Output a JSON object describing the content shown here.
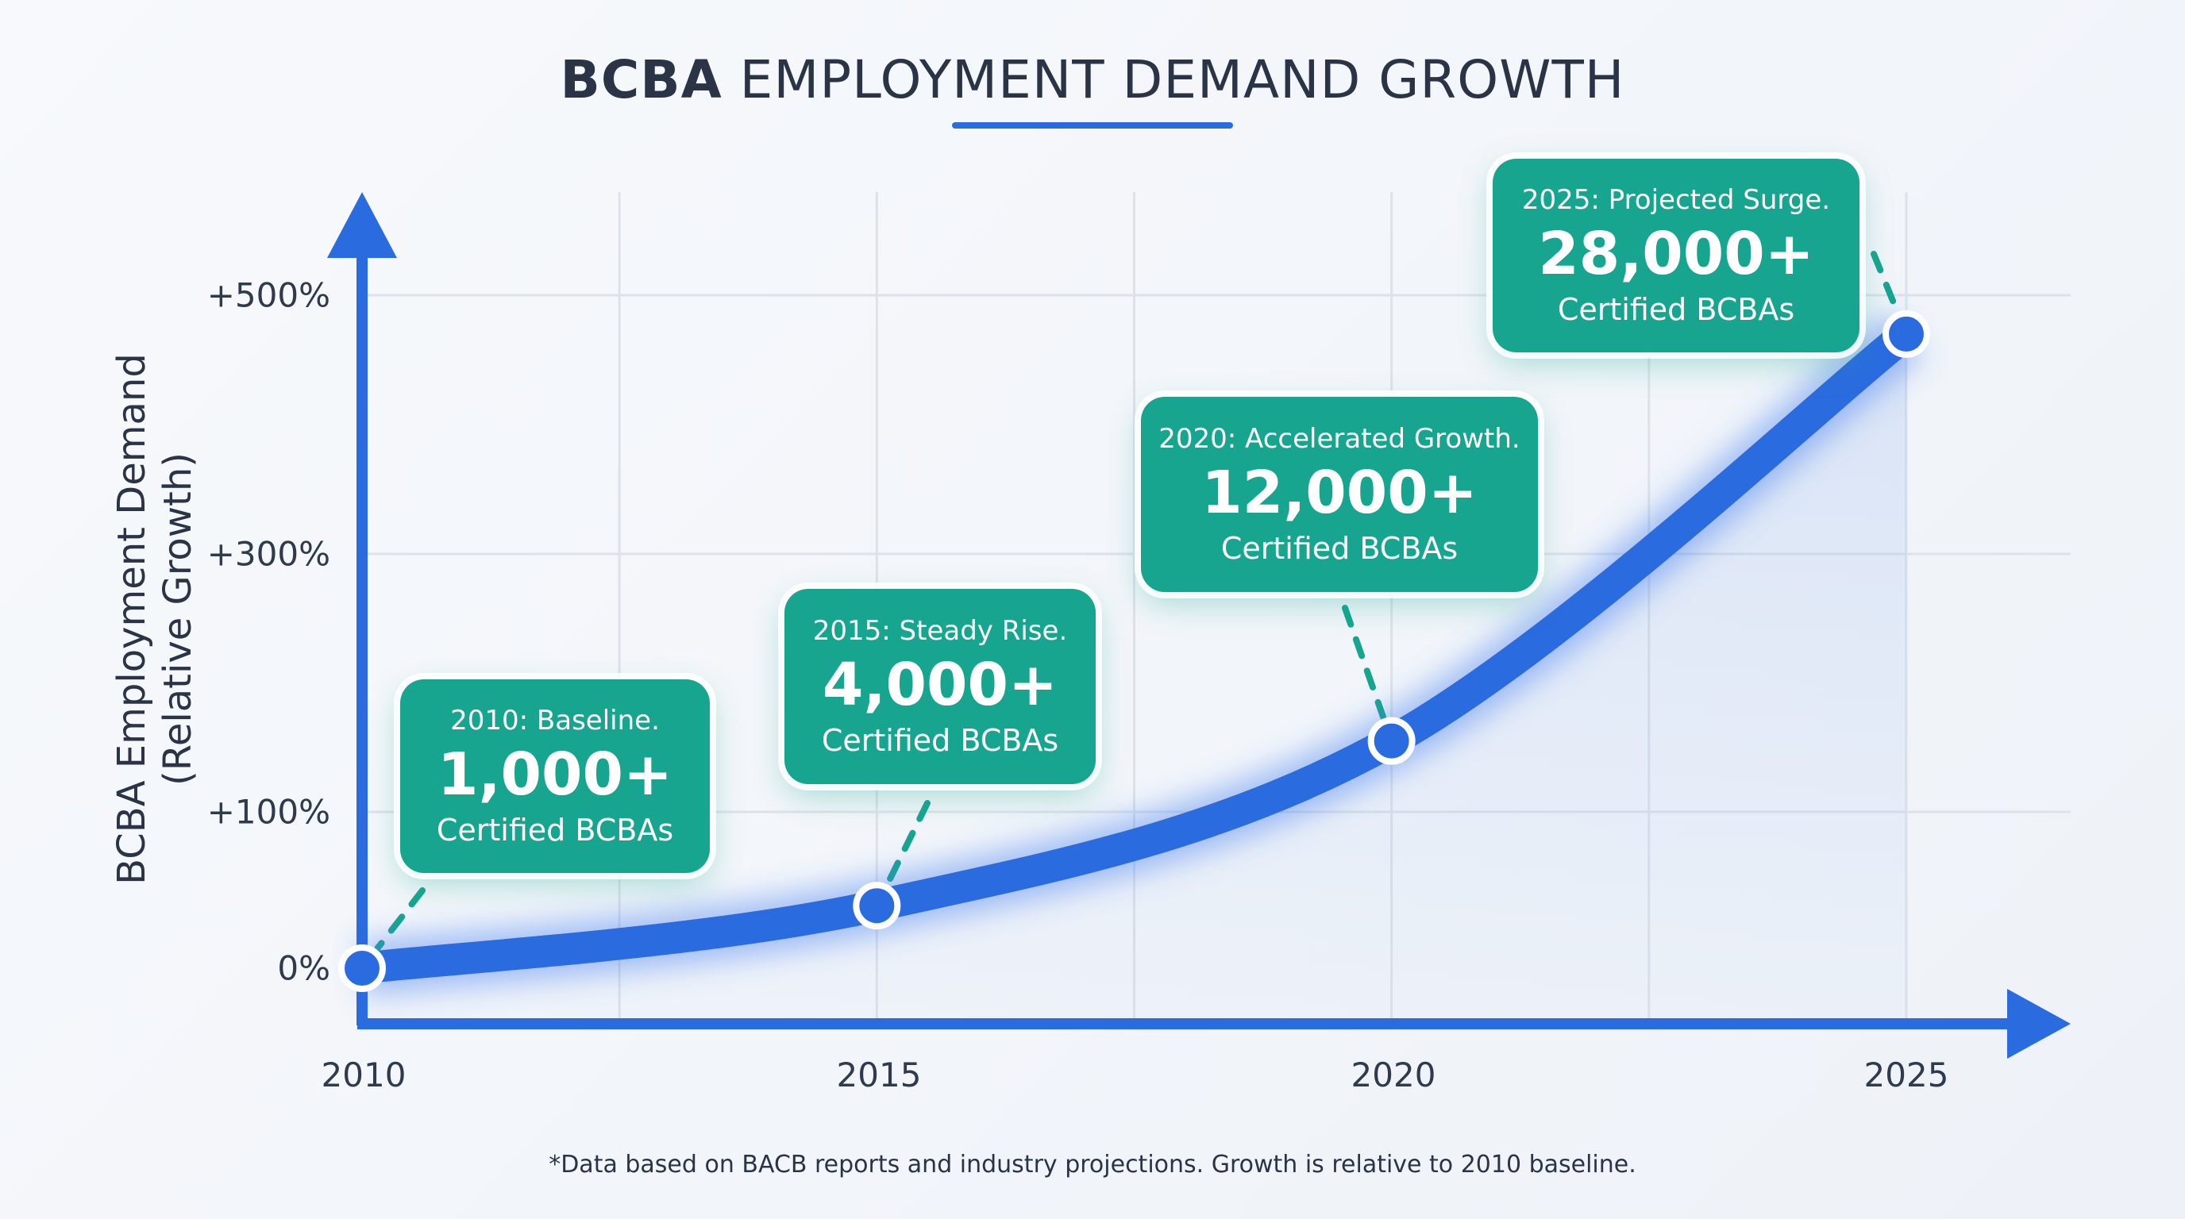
{
  "title_bold": "BCBA",
  "title_rest": " EMPLOYMENT DEMAND GROWTH",
  "colors": {
    "line": "#2b6be0",
    "card": "#17a58f",
    "text": "#2a3446"
  },
  "chart_data": {
    "type": "line",
    "title": "BCBA EMPLOYMENT DEMAND GROWTH",
    "ylabel": [
      "BCBA Employment Demand",
      "(Relative Growth)"
    ],
    "xlabel": "",
    "x": [
      2010,
      2015,
      2020,
      2025
    ],
    "x_tick_labels": [
      "2010",
      "2015",
      "2020",
      "2025"
    ],
    "y_tick_values": [
      0,
      100,
      300,
      500
    ],
    "y_tick_labels": [
      "0%",
      "+100%",
      "+300%",
      "+500%"
    ],
    "y": [
      0,
      40,
      155,
      470
    ],
    "grid": true,
    "annotations": [
      {
        "year": 2010,
        "label": "2010: Baseline.",
        "value": "1,000+",
        "sub": "Certified BCBAs"
      },
      {
        "year": 2015,
        "label": "2015: Steady Rise.",
        "value": "4,000+",
        "sub": "Certified BCBAs"
      },
      {
        "year": 2020,
        "label": "2020: Accelerated Growth.",
        "value": "12,000+",
        "sub": "Certified BCBAs"
      },
      {
        "year": 2025,
        "label": "2025: Projected Surge.",
        "value": "28,000+",
        "sub": "Certified BCBAs"
      }
    ],
    "footnote": "*Data based on BACB reports and industry projections. Growth is relative to 2010 baseline."
  }
}
